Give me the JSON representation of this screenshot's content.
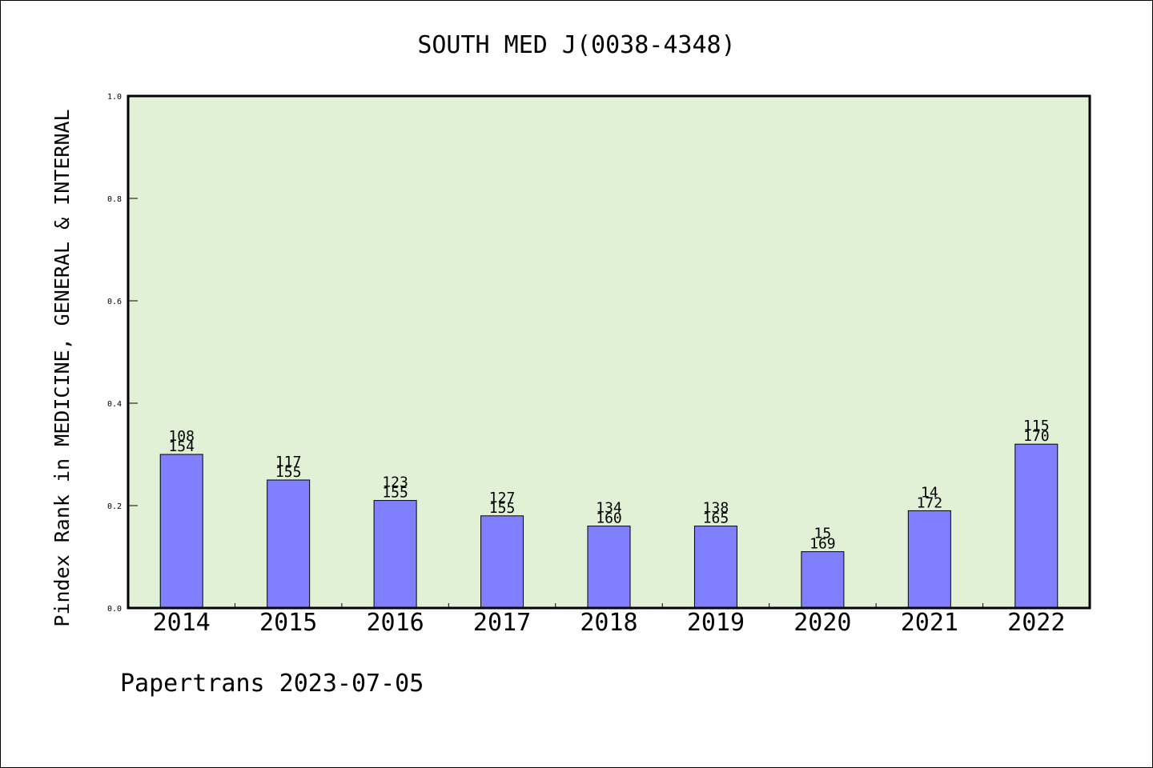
{
  "chart_data": {
    "type": "bar",
    "title": "SOUTH MED J(0038-4348)",
    "ylabel": "Pindex Rank in MEDICINE, GENERAL & INTERNAL",
    "xlabel": "",
    "ylim": [
      0,
      1.0
    ],
    "yticks": [
      "0.0",
      "0.2",
      "0.4",
      "0.6",
      "0.8",
      "1.0"
    ],
    "categories": [
      "2014",
      "2015",
      "2016",
      "2017",
      "2018",
      "2019",
      "2020",
      "2021",
      "2022"
    ],
    "values": [
      0.3,
      0.25,
      0.21,
      0.18,
      0.16,
      0.16,
      0.11,
      0.19,
      0.32
    ],
    "rank_labels": [
      "108",
      "117",
      "123",
      "127",
      "134",
      "138",
      "15",
      "14",
      "115"
    ],
    "total_labels": [
      "154",
      "155",
      "155",
      "155",
      "160",
      "165",
      "169",
      "172",
      "170"
    ],
    "footer": "Papertrans 2023-07-05",
    "colors": {
      "bar": "#8080ff",
      "plot_background": "#e2f0d6",
      "axis": "#000000"
    },
    "grid": false,
    "legend": "none"
  }
}
